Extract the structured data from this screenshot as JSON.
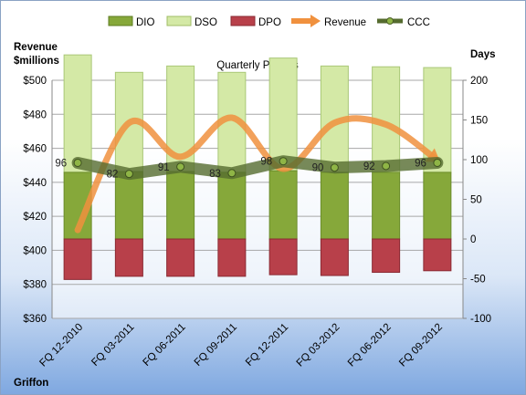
{
  "chart_data": {
    "type": "bar",
    "title": "Quarterly Periods",
    "company": "Griffon",
    "y_left_label": [
      "Revenue",
      "$millions"
    ],
    "y_right_label": "Days",
    "ylim_left": [
      360,
      500
    ],
    "ylim_right": [
      -100,
      200
    ],
    "y_left_ticks": [
      "$360",
      "$380",
      "$400",
      "$420",
      "$440",
      "$460",
      "$480",
      "$500"
    ],
    "y_right_ticks": [
      "-100",
      "-50",
      "0",
      "50",
      "100",
      "150",
      "200"
    ],
    "categories": [
      "FQ 12-2010",
      "FQ 03-2011",
      "FQ 06-2011",
      "FQ 09-2011",
      "FQ 12-2011",
      "FQ 03-2012",
      "FQ 06-2012",
      "FQ 09-2012"
    ],
    "legend": [
      "DIO",
      "DSO",
      "DPO",
      "Revenue",
      "CCC"
    ],
    "colors": {
      "DIO": "#86a83a",
      "DSO": "#d4e9a6",
      "DPO": "#b8404a",
      "Revenue": "#f0913e",
      "CCC": "#556b2f"
    },
    "series": [
      {
        "name": "DIO",
        "axis": "right",
        "values": [
          84,
          85,
          85,
          84,
          86,
          84,
          84,
          84
        ]
      },
      {
        "name": "DSO",
        "axis": "right",
        "values": [
          148,
          125,
          133,
          126,
          142,
          134,
          133,
          132
        ]
      },
      {
        "name": "DPO",
        "axis": "right",
        "values": [
          -51,
          -47,
          -47,
          -47,
          -45,
          -46,
          -42,
          -40
        ]
      },
      {
        "name": "Revenue",
        "axis": "left",
        "values": [
          412,
          475,
          455,
          478,
          448,
          475,
          474,
          453
        ]
      },
      {
        "name": "CCC",
        "axis": "right",
        "values": [
          96,
          82,
          91,
          83,
          98,
          90,
          92,
          96
        ]
      }
    ],
    "data_labels": [
      "96",
      "82",
      "91",
      "83",
      "98",
      "90",
      "92",
      "96"
    ],
    "grid": true,
    "legend_position": "top"
  }
}
